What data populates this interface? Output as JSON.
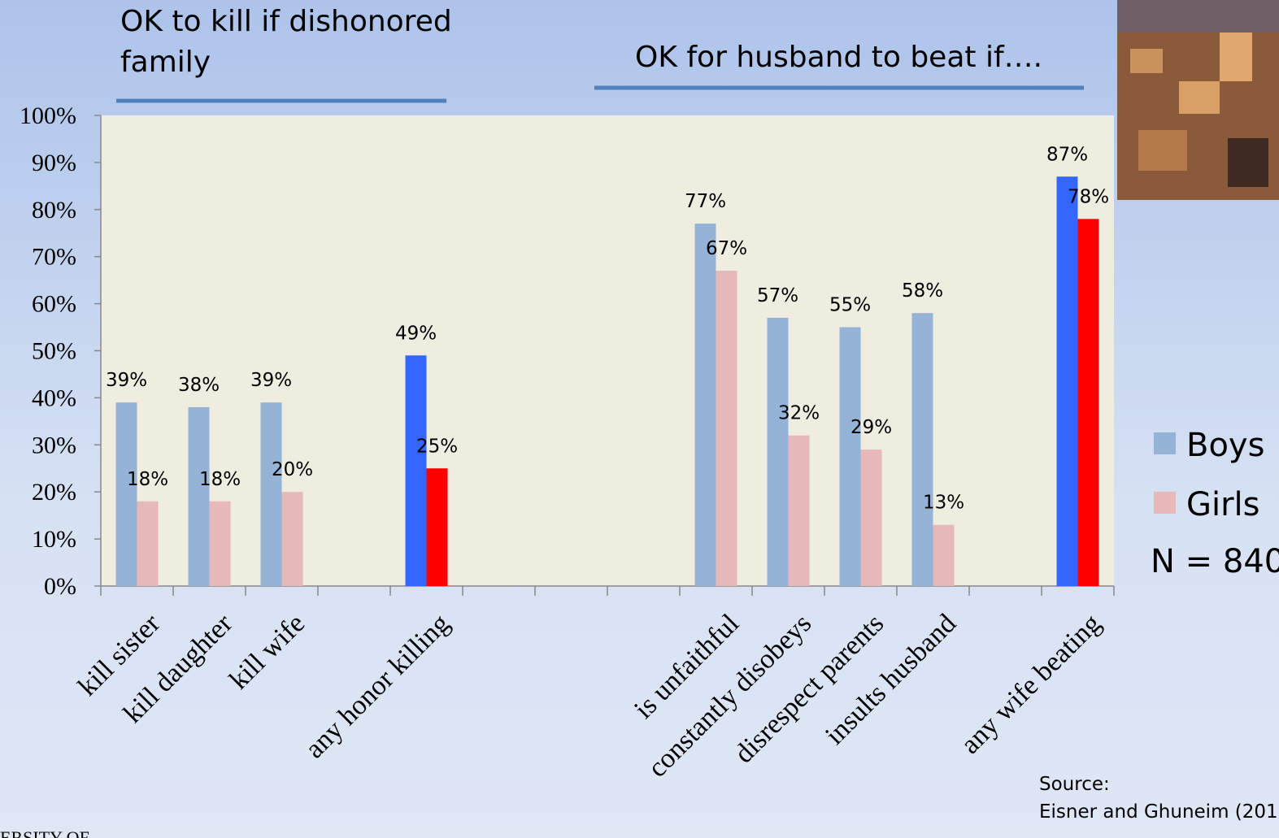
{
  "chart_data": {
    "type": "bar",
    "group_titles": [
      "OK to kill if dishonored family",
      "OK for husband to beat if…."
    ],
    "categories": [
      "kill sister",
      "kill daughter",
      "kill wife",
      null,
      "any honor killing",
      null,
      null,
      null,
      "is unfaithful",
      "constantly disobeys",
      "disrespect parents",
      "insults husband",
      null,
      "any wife beating"
    ],
    "series": [
      {
        "name": "Boys",
        "color": "#95b3d7",
        "point_colors": [
          "#95b3d7",
          "#95b3d7",
          "#95b3d7",
          null,
          "#3366ff",
          null,
          null,
          null,
          "#95b3d7",
          "#95b3d7",
          "#95b3d7",
          "#95b3d7",
          null,
          "#3366ff"
        ],
        "values": [
          39,
          38,
          39,
          null,
          49,
          null,
          null,
          null,
          77,
          57,
          55,
          58,
          null,
          87
        ],
        "value_labels": [
          "39%",
          "38%",
          "39%",
          null,
          "49%",
          null,
          null,
          null,
          "77%",
          "57%",
          "55%",
          "58%",
          null,
          "87%"
        ]
      },
      {
        "name": "Girls",
        "color": "#e6b9b8",
        "point_colors": [
          "#e6b9b8",
          "#e6b9b8",
          "#e6b9b8",
          null,
          "#ff0000",
          null,
          null,
          null,
          "#e6b9b8",
          "#e6b9b8",
          "#e6b9b8",
          "#e6b9b8",
          null,
          "#ff0000"
        ],
        "values": [
          18,
          18,
          20,
          null,
          25,
          null,
          null,
          null,
          67,
          32,
          29,
          13,
          null,
          78
        ],
        "value_labels": [
          "18%",
          "18%",
          "20%",
          null,
          "25%",
          null,
          null,
          null,
          "67%",
          "32%",
          "29%",
          "13%",
          null,
          "78%"
        ]
      }
    ],
    "ylim": [
      0,
      100
    ],
    "yticks": [
      {
        "value": 0,
        "label": "0%"
      },
      {
        "value": 10,
        "label": "10%"
      },
      {
        "value": 20,
        "label": "20%"
      },
      {
        "value": 30,
        "label": "30%"
      },
      {
        "value": 40,
        "label": "40%"
      },
      {
        "value": 50,
        "label": "50%"
      },
      {
        "value": 60,
        "label": "60%"
      },
      {
        "value": 70,
        "label": "70%"
      },
      {
        "value": 80,
        "label": "80%"
      },
      {
        "value": 90,
        "label": "90%"
      },
      {
        "value": 100,
        "label": "100%"
      }
    ],
    "sample_note": "N = 840",
    "source": [
      "Source:",
      "Eisner and Ghuneim (201"
    ],
    "footer": "ERSITY OF"
  }
}
